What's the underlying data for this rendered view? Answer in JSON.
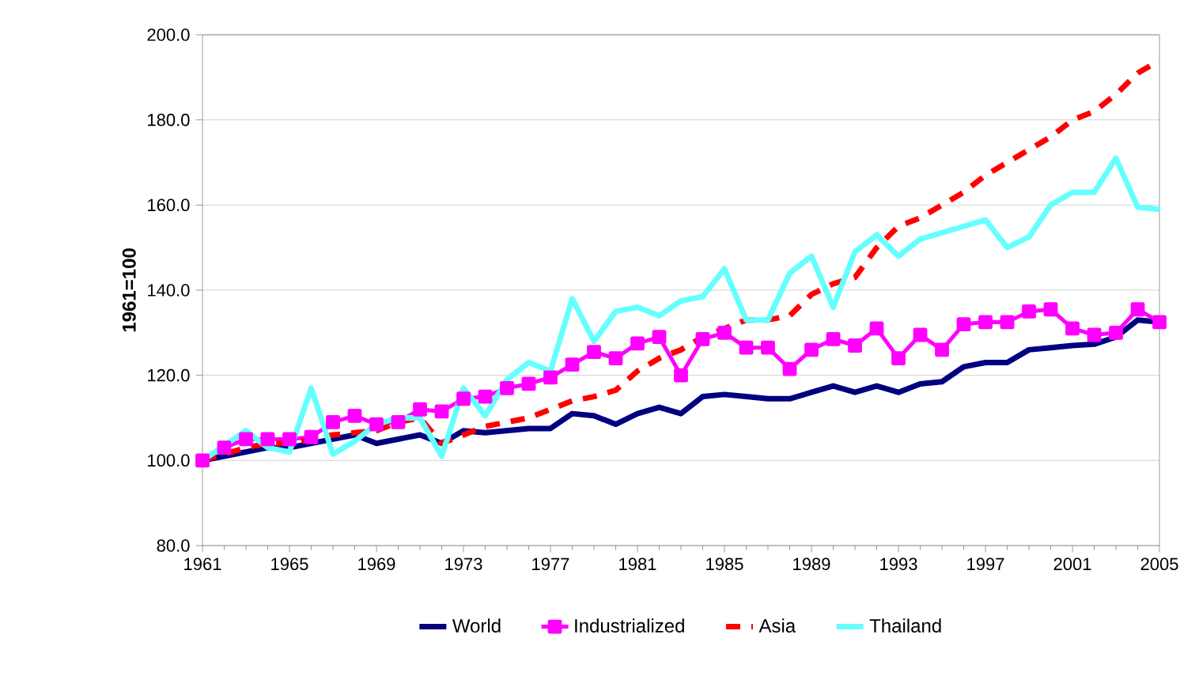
{
  "chart_data": {
    "type": "line",
    "ylabel": "1961=100",
    "x": [
      1961,
      1962,
      1963,
      1964,
      1965,
      1966,
      1967,
      1968,
      1969,
      1970,
      1971,
      1972,
      1973,
      1974,
      1975,
      1976,
      1977,
      1978,
      1979,
      1980,
      1981,
      1982,
      1983,
      1984,
      1985,
      1986,
      1987,
      1988,
      1989,
      1990,
      1991,
      1992,
      1993,
      1994,
      1995,
      1996,
      1997,
      1998,
      1999,
      2000,
      2001,
      2002,
      2003,
      2004,
      2005
    ],
    "series": [
      {
        "name": "World",
        "color": "#000080",
        "marker": "none",
        "line_style": "solid",
        "values": [
          100,
          101,
          102,
          103,
          103,
          104,
          105,
          106,
          104,
          105,
          106,
          104,
          107,
          106.5,
          107,
          107.5,
          107.5,
          111,
          110.5,
          108.5,
          111,
          112.5,
          111,
          115,
          115.5,
          115,
          114.5,
          114.5,
          116,
          117.5,
          116,
          117.5,
          116,
          118,
          118.5,
          122,
          123,
          123,
          126,
          126.5,
          127,
          127.3,
          129,
          133,
          132.5
        ]
      },
      {
        "name": "Industrialized",
        "color": "#ff00ff",
        "marker": "square",
        "line_style": "solid",
        "values": [
          100,
          103,
          105,
          105,
          105,
          105.5,
          109,
          110.5,
          108.5,
          109,
          112,
          111.5,
          114.5,
          115,
          117,
          118,
          119.5,
          122.5,
          125.5,
          124,
          127.5,
          129,
          120,
          128.5,
          130,
          126.5,
          126.5,
          121.5,
          126,
          128.5,
          127,
          131,
          124,
          129.5,
          126,
          132,
          132.5,
          132.5,
          135,
          135.5,
          131,
          129.5,
          130,
          135.5,
          132.5
        ]
      },
      {
        "name": "Asia",
        "color": "#ff0000",
        "marker": "none",
        "line_style": "dashed",
        "values": [
          100,
          101.5,
          103,
          104,
          104,
          105,
          106,
          106.5,
          107,
          109,
          110,
          104,
          106,
          108,
          109,
          110,
          112,
          114,
          115,
          116.5,
          121,
          124,
          126,
          129,
          131,
          133,
          133,
          134,
          139,
          141.5,
          143,
          150,
          155,
          157,
          160,
          163,
          167,
          170,
          173,
          176,
          180,
          182,
          186,
          191,
          194
        ]
      },
      {
        "name": "Thailand",
        "color": "#66ffff",
        "marker": "none",
        "line_style": "solid",
        "values": [
          100,
          103.5,
          107,
          103,
          102,
          117,
          101.5,
          104.5,
          108.5,
          110,
          110,
          101,
          117,
          110.5,
          119,
          123,
          121,
          138,
          128,
          135,
          136,
          134,
          137.5,
          138.5,
          145,
          133,
          133,
          144,
          148,
          136,
          149,
          153,
          148,
          152,
          153.5,
          155,
          156.5,
          150,
          152.5,
          160,
          163,
          163,
          171,
          159.5,
          159
        ]
      }
    ],
    "xlim": [
      1961,
      2005
    ],
    "xticks": [
      1961,
      1965,
      1969,
      1973,
      1977,
      1981,
      1985,
      1989,
      1993,
      1997,
      2001,
      2005
    ],
    "ylim": [
      80,
      200
    ],
    "yticks": [
      {
        "value": 80,
        "label": "80.0"
      },
      {
        "value": 100,
        "label": "100.0"
      },
      {
        "value": 120,
        "label": "120.0"
      },
      {
        "value": 140,
        "label": "140.0"
      },
      {
        "value": 160,
        "label": "160.0"
      },
      {
        "value": 180,
        "label": "180.0"
      },
      {
        "value": 200,
        "label": "200.0"
      }
    ],
    "grid": "y",
    "legend": "bottom"
  }
}
